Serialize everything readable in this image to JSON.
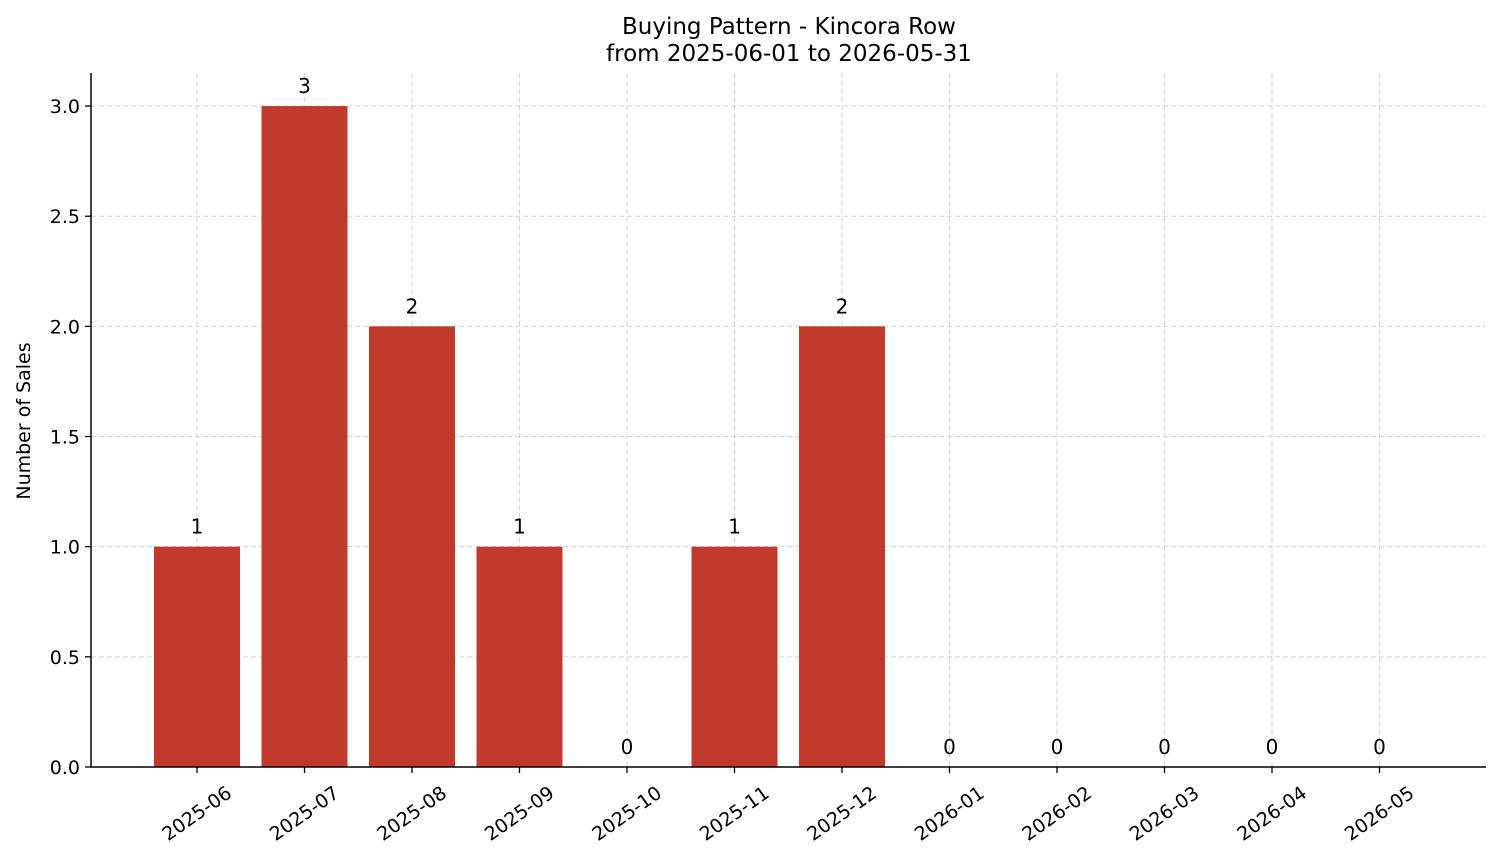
{
  "chart_data": {
    "type": "bar",
    "title": "Buying Pattern - Kincora Row",
    "subtitle": "from 2025-06-01 to 2026-05-31",
    "xlabel": "",
    "ylabel": "Number of Sales",
    "categories": [
      "2025-06",
      "2025-07",
      "2025-08",
      "2025-09",
      "2025-10",
      "2025-11",
      "2025-12",
      "2026-01",
      "2026-02",
      "2026-03",
      "2026-04",
      "2026-05"
    ],
    "values": [
      1,
      3,
      2,
      1,
      0,
      1,
      2,
      0,
      0,
      0,
      0,
      0
    ],
    "data_labels": [
      "1",
      "3",
      "2",
      "1",
      "0",
      "1",
      "2",
      "0",
      "0",
      "0",
      "0",
      "0"
    ],
    "ylim": [
      0,
      3.15
    ],
    "yticks": [
      0,
      0.5,
      1,
      1.5,
      2,
      2.5,
      3
    ],
    "ytick_labels": [
      "0.0",
      "0.5",
      "1.0",
      "1.5",
      "2.0",
      "2.5",
      "3.0"
    ],
    "grid": true,
    "grid_style": "dashed",
    "legend": false,
    "bar_color": "#c0392b"
  }
}
